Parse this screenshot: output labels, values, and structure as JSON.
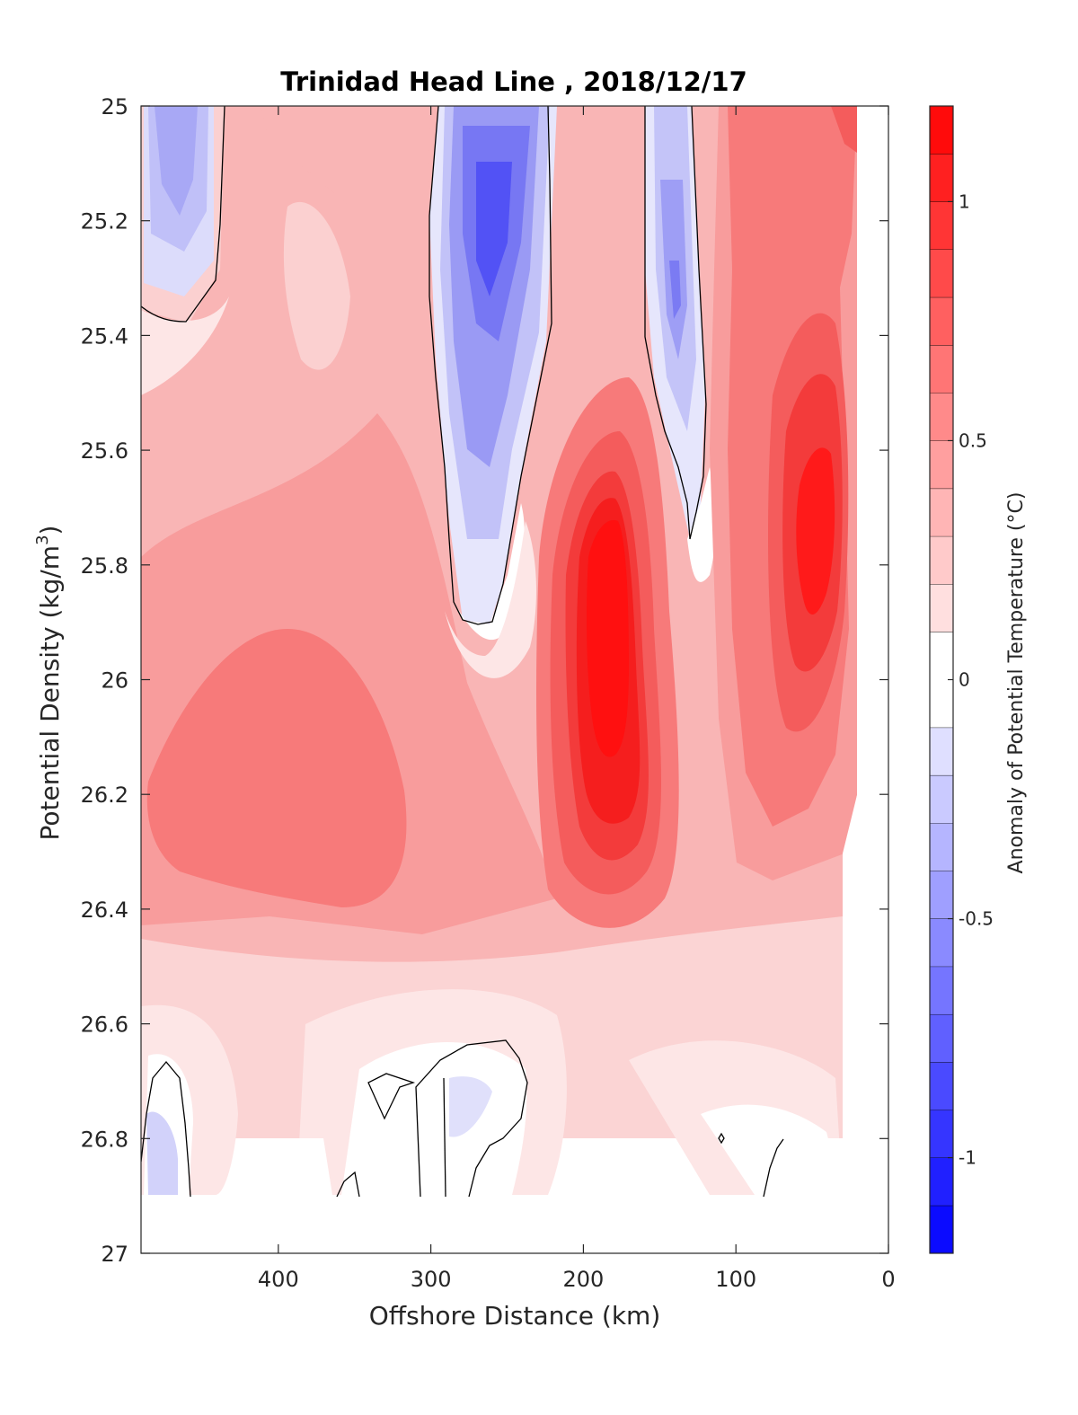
{
  "chart_data": {
    "type": "heatmap",
    "title": "Trinidad Head Line , 2018/12/17",
    "xlabel": "Offshore Distance (km)",
    "ylabel": "Potential Density (kg/m",
    "ylabel_sup": "3",
    "ylabel_end": ")",
    "colorbar_label": "Anomaly of Potential Temperature (°C)",
    "x_axis": {
      "range": [
        490,
        0
      ],
      "reversed": true,
      "ticks": [
        400,
        300,
        200,
        100,
        0
      ],
      "tick_labels": [
        "400",
        "300",
        "200",
        "100",
        "0"
      ]
    },
    "y_axis": {
      "range": [
        25,
        27
      ],
      "reversed": true,
      "ticks": [
        25,
        25.2,
        25.4,
        25.6,
        25.8,
        26,
        26.2,
        26.4,
        26.6,
        26.8,
        27
      ],
      "tick_labels": [
        "25",
        "25.2",
        "25.4",
        "25.6",
        "25.8",
        "26",
        "26.2",
        "26.4",
        "26.6",
        "26.8",
        "27"
      ]
    },
    "colorbar": {
      "range": [
        -1.2,
        1.2
      ],
      "ticks": [
        -1,
        -0.5,
        0,
        0.5,
        1
      ],
      "tick_labels": [
        "-1",
        "-0.5",
        "0",
        "0.5",
        "1"
      ],
      "levels": [
        -1.2,
        -1.1,
        -1.0,
        -0.9,
        -0.8,
        -0.7,
        -0.6,
        -0.5,
        -0.4,
        -0.3,
        -0.2,
        -0.1,
        0.1,
        0.2,
        0.3,
        0.4,
        0.5,
        0.6,
        0.7,
        0.8,
        0.9,
        1.0,
        1.1,
        1.2
      ]
    },
    "features": [
      {
        "kind": "cold",
        "x": 465,
        "y": 25.15,
        "value": -0.35
      },
      {
        "kind": "cold",
        "x": 265,
        "y": 25.25,
        "value": -0.95
      },
      {
        "kind": "cold",
        "x": 265,
        "y": 25.6,
        "value": -0.55
      },
      {
        "kind": "cold",
        "x": 142,
        "y": 25.3,
        "value": -0.6
      },
      {
        "kind": "warm",
        "x": 180,
        "y": 25.95,
        "value": 1.15
      },
      {
        "kind": "warm",
        "x": 175,
        "y": 26.2,
        "value": 0.9
      },
      {
        "kind": "warm",
        "x": 48,
        "y": 25.7,
        "value": 1.0
      },
      {
        "kind": "warm",
        "x": 340,
        "y": 26.15,
        "value": 0.7
      },
      {
        "kind": "warm",
        "x": 410,
        "y": 26.2,
        "value": 0.68
      },
      {
        "kind": "warm",
        "x": 370,
        "y": 25.05,
        "value": 0.45
      },
      {
        "kind": "warm",
        "x": 100,
        "y": 25.15,
        "value": 0.6
      },
      {
        "kind": "cold",
        "x": 470,
        "y": 26.85,
        "value": -0.2
      },
      {
        "kind": "cold",
        "x": 280,
        "y": 26.72,
        "value": -0.15
      }
    ]
  }
}
